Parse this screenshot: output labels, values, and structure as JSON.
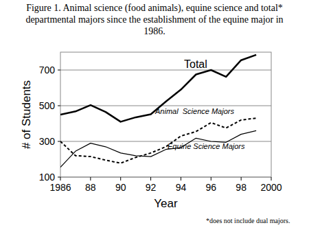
{
  "chart_data": {
    "type": "line",
    "title": "Figure 1.  Animal science (food animals), equine science and total* departmental majors since the establishment of the equine major in 1986.",
    "x_label": "Year",
    "y_label": "# of Students",
    "footnote": "*does not include dual majors.",
    "x": [
      1986,
      1987,
      1988,
      1989,
      1990,
      1991,
      1992,
      1993,
      1994,
      1995,
      1996,
      1997,
      1998,
      1999
    ],
    "series": [
      {
        "name": "Total",
        "color": "#000000",
        "line_style": "solid",
        "values": [
          450,
          468,
          503,
          465,
          410,
          435,
          452,
          523,
          590,
          675,
          700,
          662,
          755,
          785
        ]
      },
      {
        "name": "Animal  Science Majors",
        "color": "#000000",
        "line_style": "dashed",
        "values": [
          300,
          220,
          215,
          195,
          178,
          210,
          235,
          270,
          330,
          355,
          405,
          375,
          420,
          430
        ]
      },
      {
        "name": "Equine Science Majors",
        "color": "#000000",
        "line_style": "solid",
        "values": [
          155,
          245,
          290,
          270,
          235,
          220,
          215,
          255,
          265,
          318,
          300,
          295,
          340,
          360
        ]
      }
    ],
    "xlim": [
      1986,
      2000
    ],
    "xticks": [
      1986,
      {
        "value": 1988,
        "label": "88"
      },
      {
        "value": 1990,
        "label": "90"
      },
      {
        "value": 1992,
        "label": "92"
      },
      {
        "value": 1994,
        "label": "94"
      },
      {
        "value": 1996,
        "label": "96"
      },
      {
        "value": 1998,
        "label": "98"
      },
      2000
    ],
    "ylim": [
      100,
      800
    ],
    "yticks": [
      100,
      300,
      500,
      700
    ],
    "grid": true
  }
}
